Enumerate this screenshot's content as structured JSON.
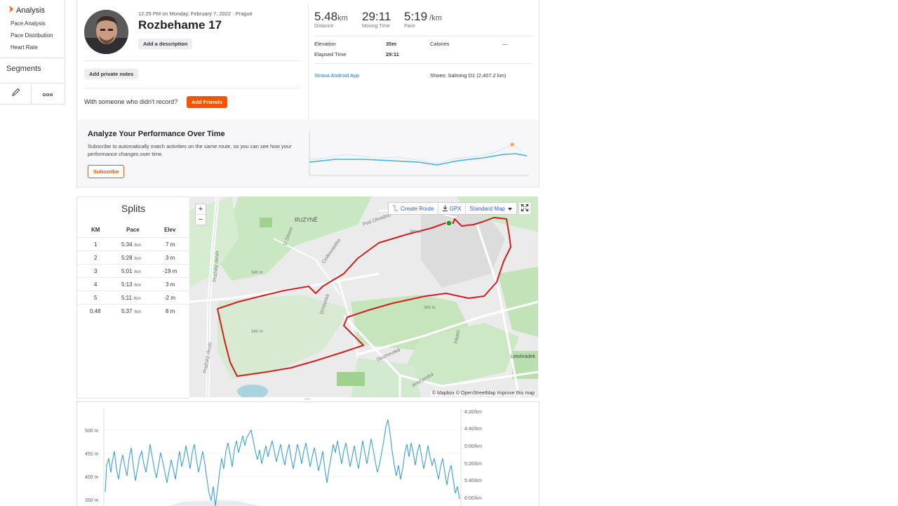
{
  "sidebar": {
    "analysis_label": "Analysis",
    "items": [
      {
        "label": "Pace Analysis"
      },
      {
        "label": "Pace Distribution"
      },
      {
        "label": "Heart Rate"
      }
    ],
    "segments_label": "Segments",
    "edit_icon": "pencil-icon",
    "more_icon": "more-icon"
  },
  "activity": {
    "datetime": "12:25 PM on Monday, February 7, 2022 · Prague",
    "title": "Rozbehame 17",
    "add_description": "Add a description",
    "add_private_notes": "Add private notes",
    "with_someone": "With someone who didn't record?",
    "add_friends": "Add Friends"
  },
  "stats": {
    "distance": {
      "value": "5.48",
      "unit": "km",
      "label": "Distance"
    },
    "moving_time": {
      "value": "29:11",
      "label": "Moving Time"
    },
    "pace": {
      "value": "5:19",
      "unit": " /km",
      "label": "Pace"
    },
    "elevation_label": "Elevation",
    "elevation_value": "35m",
    "calories_label": "Calories",
    "calories_value": "—",
    "elapsed_label": "Elapsed Time",
    "elapsed_value": "29:11",
    "device": "Strava Android App",
    "shoes": "Shoes: Salming D1 (2,407.2 km)"
  },
  "performance": {
    "title": "Analyze Your Performance Over Time",
    "text": "Subscribe to automatically match activities on the same route, so you can see how your performance changes over time.",
    "subscribe": "Subscribe"
  },
  "splits": {
    "title": "Splits",
    "headers": {
      "km": "KM",
      "pace": "Pace",
      "elev": "Elev"
    },
    "unit": "/km",
    "rows": [
      {
        "km": "1",
        "pace": "5:34",
        "elev": "7 m"
      },
      {
        "km": "2",
        "pace": "5:28",
        "elev": "3 m"
      },
      {
        "km": "3",
        "pace": "5:01",
        "elev": "-19 m"
      },
      {
        "km": "4",
        "pace": "5:13",
        "elev": "3 m"
      },
      {
        "km": "5",
        "pace": "5:11",
        "elev": "-2 m"
      },
      {
        "km": "0.48",
        "pace": "5:37",
        "elev": "8 m"
      }
    ]
  },
  "map": {
    "zoom_in": "+",
    "zoom_out": "−",
    "create_route": "Create Route",
    "gpx": "GPX",
    "map_type": "Standard Map",
    "attribution": "© Mapbox © OpenStreetMap Improve this map",
    "labels": [
      "RUZYNĚ",
      "Pod Ohradou",
      "Pražský okruh",
      "Drnovská",
      "Stochovská",
      "Letohrádek",
      "Jinočanská",
      "Ciolkovského",
      "U Silnice",
      "Pilotní",
      "340 m",
      "360 m",
      "340 m",
      "360 m"
    ],
    "route_color": "#d11e1e",
    "start_color": "#1a9e1a"
  },
  "chart": {
    "left_ticks": [
      "500 m",
      "450 m",
      "400 m",
      "350 m"
    ],
    "right_ticks": [
      "4:20/km",
      "4:40/km",
      "5:00/km",
      "5:20/km",
      "5:40/km",
      "6:00/km"
    ],
    "pace_color": "#3ba0d4",
    "trend_color": "#42b0d9",
    "highlight_color": "#fc9a2a"
  }
}
